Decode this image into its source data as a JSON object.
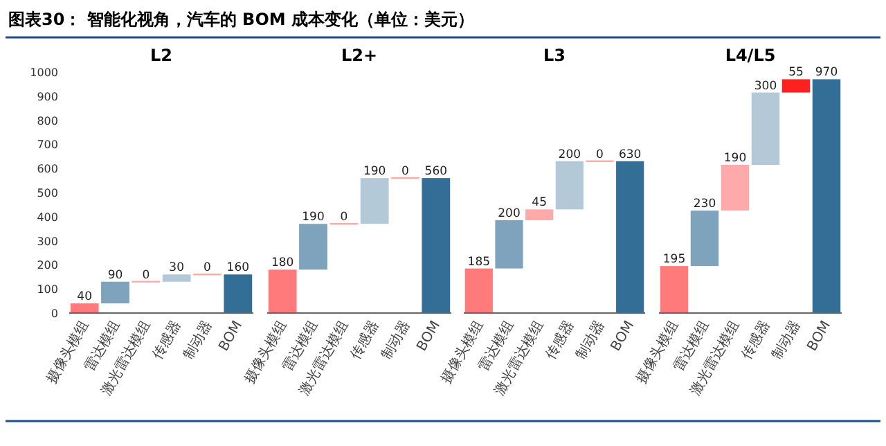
{
  "chart_data": [
    {
      "type": "bar",
      "title": "L2",
      "annotations": [
        "图表30：  智能化视角，汽车的 BOM 成本变化（单位：美元）"
      ],
      "categories": [
        "摄像头模组",
        "雷达模组",
        "激光雷达模组",
        "传感器",
        "制动器",
        "BOM"
      ],
      "values": [
        40,
        90,
        0,
        30,
        0,
        160
      ],
      "base": [
        0,
        40,
        130,
        130,
        160,
        0
      ],
      "colors": [
        "#ff7b7b",
        "#7fa2bd",
        "#ffaaaa",
        "#b3c9d7",
        "#ffaaaa",
        "#336e96"
      ],
      "data_labels": true,
      "ylim": [
        0,
        1000
      ],
      "yticks": [
        0,
        100,
        200,
        300,
        400,
        500,
        600,
        700,
        800,
        900,
        1000
      ]
    },
    {
      "type": "bar",
      "title": "L2+",
      "categories": [
        "摄像头模组",
        "雷达模组",
        "激光雷达模组",
        "传感器",
        "制动器",
        "BOM"
      ],
      "values": [
        180,
        190,
        0,
        190,
        0,
        560
      ],
      "base": [
        0,
        180,
        370,
        370,
        560,
        0
      ],
      "colors": [
        "#ff7b7b",
        "#7fa2bd",
        "#ffaaaa",
        "#b3c9d7",
        "#ffaaaa",
        "#336e96"
      ],
      "data_labels": true,
      "ylim": [
        0,
        1000
      ],
      "tick_labels": "x"
    },
    {
      "type": "bar",
      "title": "L3",
      "categories": [
        "摄像头模组",
        "雷达模组",
        "激光雷达模组",
        "传感器",
        "制动器",
        "BOM"
      ],
      "values": [
        185,
        200,
        45,
        200,
        0,
        630
      ],
      "base": [
        0,
        185,
        385,
        430,
        630,
        0
      ],
      "colors": [
        "#ff7b7b",
        "#7fa2bd",
        "#ffaaaa",
        "#b3c9d7",
        "#ffaaaa",
        "#336e96"
      ],
      "data_labels": true,
      "ylim": [
        0,
        1000
      ],
      "tick_labels": "x"
    },
    {
      "type": "bar",
      "title": "L4/L5",
      "categories": [
        "摄像头模组",
        "雷达模组",
        "激光雷达模组",
        "传感器",
        "制动器",
        "BOM"
      ],
      "values": [
        195,
        230,
        190,
        300,
        55,
        970
      ],
      "base": [
        0,
        195,
        425,
        615,
        915,
        0
      ],
      "colors": [
        "#ff7b7b",
        "#7fa2bd",
        "#ffaaaa",
        "#b3c9d7",
        "#ff2020",
        "#336e96"
      ],
      "data_labels": true,
      "ylim": [
        0,
        1000
      ],
      "tick_labels": "x"
    }
  ]
}
